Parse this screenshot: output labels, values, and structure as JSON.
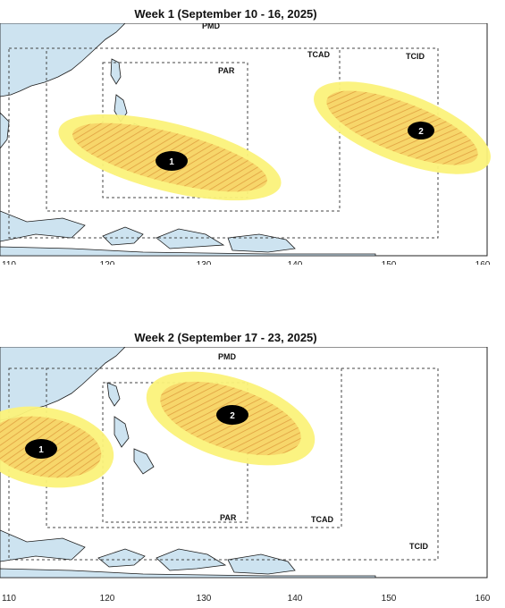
{
  "panels": [
    {
      "title": "Week 1 (September 10 - 16, 2025)",
      "regions": {
        "pmd": "PMD",
        "tcad": "TCAD",
        "tcid": "TCID",
        "par": "PAR"
      },
      "cyclones": [
        {
          "id": "1",
          "label": "1"
        },
        {
          "id": "2",
          "label": "2"
        }
      ],
      "x_ticks": [
        "110",
        "120",
        "130",
        "140",
        "150",
        "160"
      ]
    },
    {
      "title": "Week 2 (September 17 - 23, 2025)",
      "regions": {
        "pmd": "PMD",
        "tcad": "TCAD",
        "tcid": "TCID",
        "par": "PAR"
      },
      "cyclones": [
        {
          "id": "1",
          "label": "1"
        },
        {
          "id": "2",
          "label": "2"
        }
      ],
      "x_ticks": [
        "110",
        "120",
        "130",
        "140",
        "150",
        "160"
      ]
    }
  ],
  "colors": {
    "land": "#cde3f0",
    "coast": "#1a1a1a",
    "outer_zone": "#fbf27a",
    "inner_zone": "#f7d66a",
    "hatch": "#e0a040",
    "marker": "#000000"
  }
}
